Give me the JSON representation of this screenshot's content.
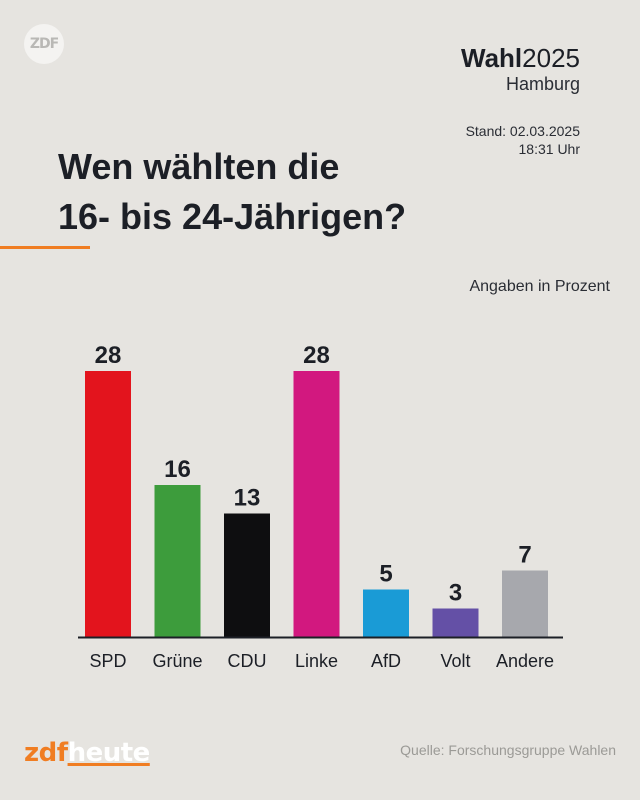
{
  "header": {
    "logo_text": "ZDF",
    "wahl_bold": "Wahl",
    "wahl_year": "2025",
    "city": "Hamburg",
    "stand_line1": "Stand: 02.03.2025",
    "stand_line2": "18:31 Uhr"
  },
  "headline": {
    "line1": "Wen wählten die",
    "line2": "16- bis 24-Jährigen?"
  },
  "unit_note": "Angaben in Prozent",
  "footer": {
    "brand_zdf": "zdf",
    "brand_heute": "heute",
    "source": "Quelle: Forschungsgruppe Wahlen"
  },
  "colors": {
    "background": "#e6e4e0",
    "accent": "#f07d22",
    "axis": "#1c1f26"
  },
  "chart_data": {
    "type": "bar",
    "title": "Wen wählten die 16- bis 24-Jährigen?",
    "ylabel": "Angaben in Prozent",
    "ylim": [
      0,
      30
    ],
    "grid": false,
    "categories": [
      "SPD",
      "Grüne",
      "CDU",
      "Linke",
      "AfD",
      "Volt",
      "Andere"
    ],
    "values": [
      28,
      16,
      13,
      28,
      5,
      3,
      7
    ],
    "bar_colors": [
      "#e3141d",
      "#3d9c3c",
      "#0e0e10",
      "#d2187f",
      "#1a9bd6",
      "#6450a6",
      "#a7a8ad"
    ]
  }
}
